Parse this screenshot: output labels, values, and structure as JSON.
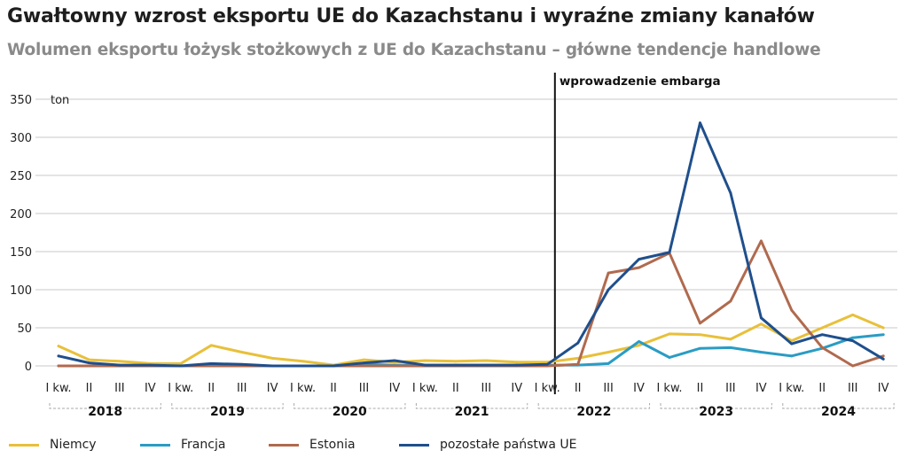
{
  "header": {
    "title": "Gwałtowny wzrost eksportu UE do Kazachstanu i wyraźne zmiany kanałów",
    "subtitle": "Wolumen eksportu łożysk stożkowych z UE do Kazachstanu – główne tendencje handlowe"
  },
  "chart_data": {
    "type": "line",
    "title": "Gwałtowny wzrost eksportu UE do Kazachstanu i wyraźne zmiany kanałów",
    "subtitle": "Wolumen eksportu łożysk stożkowych z UE do Kazachstanu – główne tendencje handlowe",
    "ylabel": "ton",
    "ylim": [
      0,
      350
    ],
    "yticks": [
      0,
      50,
      100,
      150,
      200,
      250,
      300,
      350
    ],
    "grid": "horizontal",
    "legend_position": "bottom",
    "quarters": [
      "I kw.",
      "II",
      "III",
      "IV",
      "I kw.",
      "II",
      "III",
      "IV",
      "I kw.",
      "II",
      "III",
      "IV",
      "I kw.",
      "II",
      "III",
      "IV",
      "I kw.",
      "II",
      "III",
      "IV",
      "I kw.",
      "II",
      "III",
      "IV",
      "I kw.",
      "II",
      "III",
      "IV"
    ],
    "years": [
      "2018",
      "2019",
      "2020",
      "2021",
      "2022",
      "2023",
      "2024"
    ],
    "annotation": {
      "label": "wprowadzenie embarga",
      "x_index": 16.25
    },
    "series": [
      {
        "name": "Niemcy",
        "color": "#e8c03a",
        "values": [
          26,
          8,
          6,
          3,
          3,
          27,
          18,
          10,
          6,
          1,
          8,
          5,
          7,
          6,
          7,
          5,
          5,
          10,
          18,
          27,
          42,
          41,
          35,
          55,
          33,
          50,
          67,
          50
        ]
      },
      {
        "name": "Francja",
        "color": "#2a9cc4",
        "values": [
          0,
          0,
          0,
          0,
          0,
          0,
          0,
          0,
          0,
          0,
          2,
          1,
          1,
          1,
          1,
          1,
          1,
          1,
          3,
          32,
          11,
          23,
          24,
          18,
          13,
          23,
          37,
          41
        ]
      },
      {
        "name": "Estonia",
        "color": "#b06a4e",
        "values": [
          0,
          0,
          0,
          0,
          0,
          0,
          0,
          0,
          0,
          0,
          0,
          0,
          0,
          0,
          0,
          0,
          0,
          2,
          122,
          129,
          148,
          56,
          85,
          164,
          73,
          24,
          0,
          13
        ]
      },
      {
        "name": "pozostałe państwa UE",
        "color": "#1f4f8c",
        "values": [
          13,
          4,
          1,
          1,
          0,
          3,
          2,
          0,
          0,
          0,
          4,
          7,
          1,
          1,
          1,
          1,
          2,
          30,
          100,
          140,
          149,
          319,
          227,
          63,
          29,
          41,
          33,
          9
        ]
      }
    ]
  }
}
